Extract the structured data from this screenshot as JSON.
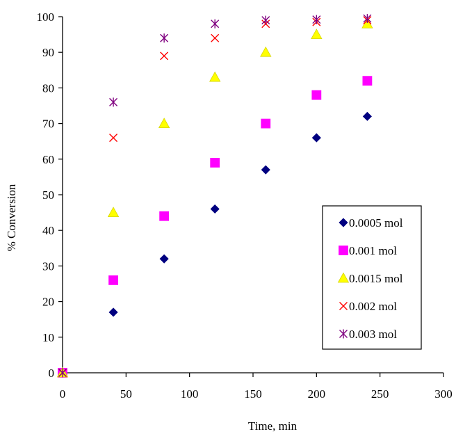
{
  "chart_data": {
    "type": "scatter",
    "title": "",
    "xlabel": "Time, min",
    "ylabel": "% Conversion",
    "xlim": [
      0,
      300
    ],
    "ylim": [
      0,
      100
    ],
    "xticks": [
      0,
      50,
      100,
      150,
      200,
      250,
      300
    ],
    "yticks": [
      0,
      10,
      20,
      30,
      40,
      50,
      60,
      70,
      80,
      90,
      100
    ],
    "grid": false,
    "legend_position": "right",
    "series": [
      {
        "name": "0.0005 mol",
        "marker": "diamond",
        "color": "#000080",
        "x": [
          0,
          40,
          80,
          120,
          160,
          200,
          240
        ],
        "y": [
          0,
          17,
          32,
          46,
          57,
          66,
          72
        ]
      },
      {
        "name": "0.001 mol",
        "marker": "square",
        "color": "#ff00ff",
        "x": [
          0,
          40,
          80,
          120,
          160,
          200,
          240
        ],
        "y": [
          0,
          26,
          44,
          59,
          70,
          78,
          82
        ]
      },
      {
        "name": "0.0015 mol",
        "marker": "triangle",
        "color": "#ffff00",
        "x": [
          0,
          40,
          80,
          120,
          160,
          200,
          240
        ],
        "y": [
          0,
          45,
          70,
          83,
          90,
          95,
          98
        ]
      },
      {
        "name": "0.002 mol",
        "marker": "x",
        "color": "#ff0000",
        "x": [
          0,
          40,
          80,
          120,
          160,
          200,
          240
        ],
        "y": [
          0,
          66,
          89,
          94,
          98,
          98.5,
          99
        ]
      },
      {
        "name": "0.003 mol",
        "marker": "star",
        "color": "#800080",
        "x": [
          0,
          40,
          80,
          120,
          160,
          200,
          240
        ],
        "y": [
          0,
          76,
          94,
          98,
          99,
          99.2,
          99.5
        ]
      }
    ]
  }
}
